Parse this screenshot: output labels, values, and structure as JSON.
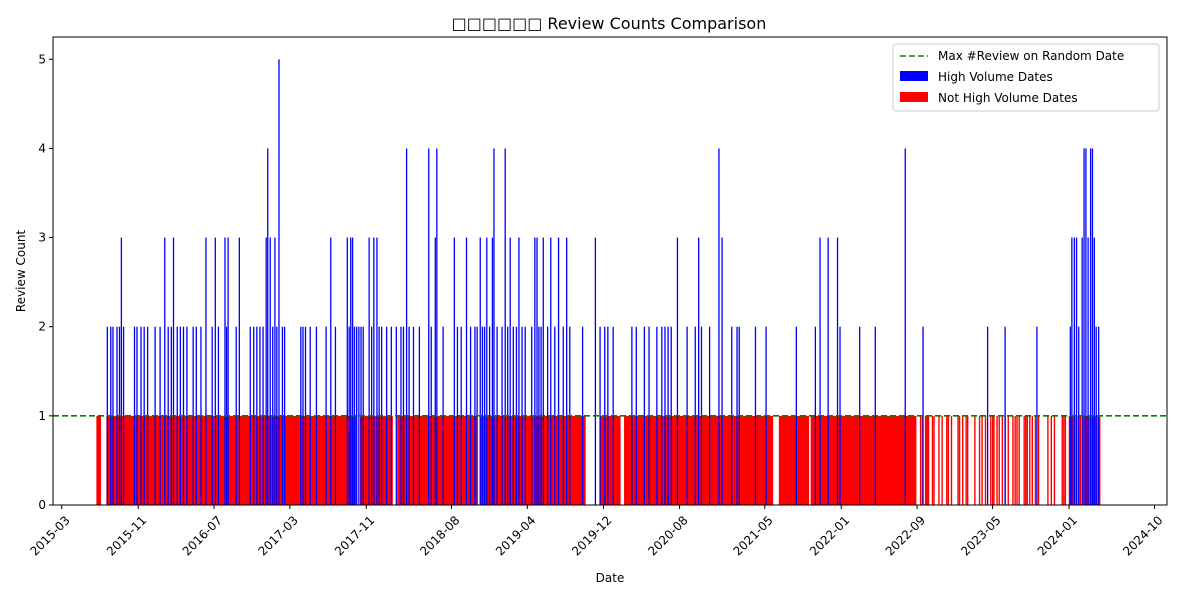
{
  "chart_data": {
    "type": "bar",
    "title": "□□□□□□ Review Counts Comparison",
    "xlabel": "Date",
    "ylabel": "Review Count",
    "ylim": [
      0,
      5.25
    ],
    "xlim": [
      "2015-02-01",
      "2024-11-10"
    ],
    "yticks": [
      0,
      1,
      2,
      3,
      4,
      5
    ],
    "xticks": [
      "2015-03",
      "2015-11",
      "2016-07",
      "2017-03",
      "2017-11",
      "2018-08",
      "2019-04",
      "2019-12",
      "2020-08",
      "2021-05",
      "2022-01",
      "2022-09",
      "2023-05",
      "2024-01",
      "2024-10"
    ],
    "legend_position": "top-right",
    "reference_line": {
      "label": "Max #Review on Random Date",
      "value": 1,
      "color": "#008000",
      "style": "dashed"
    },
    "series": [
      {
        "name": "High Volume Dates",
        "color": "#0000ff",
        "points": [
          [
            "2015-07-25",
            2
          ],
          [
            "2015-08-05",
            2
          ],
          [
            "2015-08-12",
            2
          ],
          [
            "2015-08-25",
            2
          ],
          [
            "2015-09-02",
            2
          ],
          [
            "2015-09-08",
            3
          ],
          [
            "2015-09-15",
            2
          ],
          [
            "2015-10-20",
            2
          ],
          [
            "2015-10-28",
            2
          ],
          [
            "2015-11-10",
            2
          ],
          [
            "2015-11-20",
            2
          ],
          [
            "2015-12-01",
            2
          ],
          [
            "2015-12-25",
            2
          ],
          [
            "2016-01-10",
            2
          ],
          [
            "2016-01-25",
            3
          ],
          [
            "2016-02-05",
            2
          ],
          [
            "2016-02-15",
            2
          ],
          [
            "2016-02-22",
            3
          ],
          [
            "2016-03-05",
            2
          ],
          [
            "2016-03-15",
            2
          ],
          [
            "2016-03-25",
            2
          ],
          [
            "2016-04-05",
            2
          ],
          [
            "2016-04-25",
            2
          ],
          [
            "2016-05-05",
            2
          ],
          [
            "2016-05-20",
            2
          ],
          [
            "2016-06-05",
            3
          ],
          [
            "2016-06-25",
            2
          ],
          [
            "2016-07-05",
            3
          ],
          [
            "2016-07-15",
            2
          ],
          [
            "2016-08-05",
            3
          ],
          [
            "2016-08-10",
            2
          ],
          [
            "2016-08-15",
            3
          ],
          [
            "2016-09-10",
            2
          ],
          [
            "2016-09-20",
            3
          ],
          [
            "2016-10-25",
            2
          ],
          [
            "2016-11-05",
            2
          ],
          [
            "2016-11-15",
            2
          ],
          [
            "2016-11-25",
            2
          ],
          [
            "2016-12-05",
            2
          ],
          [
            "2016-12-15",
            3
          ],
          [
            "2016-12-20",
            4
          ],
          [
            "2016-12-28",
            3
          ],
          [
            "2017-01-05",
            2
          ],
          [
            "2017-01-12",
            3
          ],
          [
            "2017-01-18",
            2
          ],
          [
            "2017-01-25",
            5
          ],
          [
            "2017-02-05",
            2
          ],
          [
            "2017-02-12",
            2
          ],
          [
            "2017-04-05",
            2
          ],
          [
            "2017-04-12",
            2
          ],
          [
            "2017-04-20",
            2
          ],
          [
            "2017-05-05",
            2
          ],
          [
            "2017-05-25",
            2
          ],
          [
            "2017-06-25",
            2
          ],
          [
            "2017-07-10",
            3
          ],
          [
            "2017-07-25",
            2
          ],
          [
            "2017-09-01",
            3
          ],
          [
            "2017-09-07",
            2
          ],
          [
            "2017-09-12",
            3
          ],
          [
            "2017-09-18",
            3
          ],
          [
            "2017-09-24",
            2
          ],
          [
            "2017-10-01",
            2
          ],
          [
            "2017-10-08",
            2
          ],
          [
            "2017-10-15",
            2
          ],
          [
            "2017-10-22",
            2
          ],
          [
            "2017-11-10",
            3
          ],
          [
            "2017-11-18",
            2
          ],
          [
            "2017-11-25",
            3
          ],
          [
            "2017-12-05",
            3
          ],
          [
            "2017-12-12",
            2
          ],
          [
            "2017-12-20",
            2
          ],
          [
            "2018-01-05",
            2
          ],
          [
            "2018-01-20",
            2
          ],
          [
            "2018-02-05",
            2
          ],
          [
            "2018-02-20",
            2
          ],
          [
            "2018-02-28",
            2
          ],
          [
            "2018-03-10",
            4
          ],
          [
            "2018-03-18",
            2
          ],
          [
            "2018-04-01",
            2
          ],
          [
            "2018-04-20",
            2
          ],
          [
            "2018-05-20",
            4
          ],
          [
            "2018-05-28",
            2
          ],
          [
            "2018-06-10",
            3
          ],
          [
            "2018-06-15",
            4
          ],
          [
            "2018-07-05",
            2
          ],
          [
            "2018-08-10",
            3
          ],
          [
            "2018-08-20",
            2
          ],
          [
            "2018-09-01",
            2
          ],
          [
            "2018-09-18",
            3
          ],
          [
            "2018-10-01",
            2
          ],
          [
            "2018-10-15",
            2
          ],
          [
            "2018-10-22",
            2
          ],
          [
            "2018-11-01",
            3
          ],
          [
            "2018-11-08",
            2
          ],
          [
            "2018-11-15",
            2
          ],
          [
            "2018-11-22",
            3
          ],
          [
            "2018-12-01",
            2
          ],
          [
            "2018-12-10",
            3
          ],
          [
            "2018-12-15",
            4
          ],
          [
            "2018-12-25",
            2
          ],
          [
            "2019-01-10",
            2
          ],
          [
            "2019-01-20",
            4
          ],
          [
            "2019-01-28",
            2
          ],
          [
            "2019-02-05",
            3
          ],
          [
            "2019-02-15",
            2
          ],
          [
            "2019-02-25",
            2
          ],
          [
            "2019-03-05",
            3
          ],
          [
            "2019-03-15",
            2
          ],
          [
            "2019-03-25",
            2
          ],
          [
            "2019-04-15",
            2
          ],
          [
            "2019-04-25",
            3
          ],
          [
            "2019-05-02",
            3
          ],
          [
            "2019-05-08",
            2
          ],
          [
            "2019-05-15",
            2
          ],
          [
            "2019-05-22",
            3
          ],
          [
            "2019-06-05",
            2
          ],
          [
            "2019-06-15",
            3
          ],
          [
            "2019-06-28",
            2
          ],
          [
            "2019-07-10",
            3
          ],
          [
            "2019-07-25",
            2
          ],
          [
            "2019-08-05",
            3
          ],
          [
            "2019-08-15",
            2
          ],
          [
            "2019-09-25",
            2
          ],
          [
            "2019-11-05",
            3
          ],
          [
            "2019-11-20",
            2
          ],
          [
            "2019-12-05",
            2
          ],
          [
            "2019-12-15",
            2
          ],
          [
            "2020-01-01",
            2
          ],
          [
            "2020-03-01",
            2
          ],
          [
            "2020-03-15",
            2
          ],
          [
            "2020-04-10",
            2
          ],
          [
            "2020-04-25",
            2
          ],
          [
            "2020-05-20",
            2
          ],
          [
            "2020-06-05",
            2
          ],
          [
            "2020-06-15",
            2
          ],
          [
            "2020-06-25",
            2
          ],
          [
            "2020-07-05",
            2
          ],
          [
            "2020-07-25",
            3
          ],
          [
            "2020-08-25",
            2
          ],
          [
            "2020-09-20",
            2
          ],
          [
            "2020-10-01",
            3
          ],
          [
            "2020-10-10",
            2
          ],
          [
            "2020-11-05",
            2
          ],
          [
            "2020-12-05",
            4
          ],
          [
            "2020-12-15",
            3
          ],
          [
            "2021-01-15",
            2
          ],
          [
            "2021-02-01",
            2
          ],
          [
            "2021-02-08",
            2
          ],
          [
            "2021-04-01",
            2
          ],
          [
            "2021-05-05",
            2
          ],
          [
            "2021-08-10",
            2
          ],
          [
            "2021-10-10",
            2
          ],
          [
            "2021-10-25",
            3
          ],
          [
            "2021-11-20",
            3
          ],
          [
            "2021-12-20",
            3
          ],
          [
            "2021-12-28",
            2
          ],
          [
            "2022-03-01",
            2
          ],
          [
            "2022-04-20",
            2
          ],
          [
            "2022-07-25",
            4
          ],
          [
            "2022-09-20",
            2
          ],
          [
            "2023-04-15",
            2
          ],
          [
            "2023-06-10",
            2
          ],
          [
            "2023-09-20",
            2
          ],
          [
            "2024-01-05",
            2
          ],
          [
            "2024-01-10",
            3
          ],
          [
            "2024-01-18",
            3
          ],
          [
            "2024-01-25",
            3
          ],
          [
            "2024-02-01",
            2
          ],
          [
            "2024-02-12",
            3
          ],
          [
            "2024-02-18",
            4
          ],
          [
            "2024-02-24",
            4
          ],
          [
            "2024-03-02",
            3
          ],
          [
            "2024-03-10",
            4
          ],
          [
            "2024-03-16",
            4
          ],
          [
            "2024-03-22",
            3
          ],
          [
            "2024-03-28",
            2
          ],
          [
            "2024-04-05",
            2
          ]
        ]
      },
      {
        "name": "Not High Volume Dates",
        "color": "#ff0000",
        "ranges": [
          [
            "2015-06-20",
            "2015-07-05"
          ],
          [
            "2015-07-22",
            "2017-10-02"
          ],
          [
            "2017-10-12",
            "2018-01-25"
          ],
          [
            "2018-02-08",
            "2018-10-20"
          ],
          [
            "2018-10-30",
            "2019-10-05"
          ],
          [
            "2019-11-20",
            "2020-01-25"
          ],
          [
            "2020-02-05",
            "2021-05-28"
          ],
          [
            "2021-06-15",
            "2021-09-20"
          ],
          [
            "2021-09-25",
            "2022-08-30"
          ],
          [
            "2022-09-30",
            "2022-10-10"
          ]
        ],
        "points": [
          "2022-09-12",
          "2022-09-18",
          "2022-09-28",
          "2022-10-20",
          "2022-10-25",
          "2022-11-10",
          "2022-11-20",
          "2022-12-05",
          "2022-12-10",
          "2022-12-20",
          "2023-01-10",
          "2023-01-15",
          "2023-01-25",
          "2023-02-05",
          "2023-02-10",
          "2023-03-05",
          "2023-03-20",
          "2023-03-28",
          "2023-04-08",
          "2023-04-25",
          "2023-05-01",
          "2023-05-05",
          "2023-05-15",
          "2023-05-22",
          "2023-06-01",
          "2023-06-10",
          "2023-06-20",
          "2023-07-05",
          "2023-07-12",
          "2023-07-18",
          "2023-07-25",
          "2023-08-10",
          "2023-08-15",
          "2023-08-20",
          "2023-08-28",
          "2023-09-05",
          "2023-09-15",
          "2023-09-25",
          "2023-10-25",
          "2023-11-05",
          "2023-11-15",
          "2023-12-10",
          "2023-12-15",
          "2023-12-20",
          "2024-01-02",
          "2024-01-08",
          "2024-01-14",
          "2024-01-20",
          "2024-01-26",
          "2024-02-01",
          "2024-02-06",
          "2024-02-12",
          "2024-02-17",
          "2024-02-22",
          "2024-02-27",
          "2024-03-04",
          "2024-03-09",
          "2024-03-14",
          "2024-03-19",
          "2024-03-24",
          "2024-03-29",
          "2024-04-03",
          "2024-04-08"
        ]
      }
    ]
  }
}
